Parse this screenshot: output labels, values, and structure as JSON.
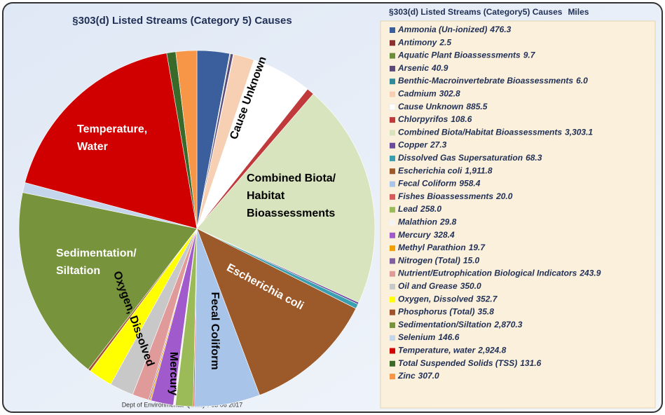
{
  "chart_data": {
    "type": "pie",
    "title": "§303(d) Listed Streams (Category 5) Causes",
    "legend_title": "§303(d) Listed Streams (Category5) Causes",
    "legend_unit": "Miles",
    "footer": "Dept of Environmental Quality  Feb 06 2017",
    "categories": [
      "Ammonia (Un-ionized)",
      "Antimony",
      "Aquatic Plant Bioassessments",
      "Arsenic",
      "Benthic-Macroinvertebrate Bioassessments",
      "Cadmium",
      "Cause Unknown",
      "Chlorpyrifos",
      "Combined Biota/Habitat Bioassessments",
      "Copper",
      "Dissolved Gas Supersaturation",
      "Escherichia coli",
      "Fecal Coliform",
      "Fishes Bioassessments",
      "Lead",
      "Malathion",
      "Mercury",
      "Methyl Parathion",
      "Nitrogen (Total)",
      "Nutrient/Eutrophication Biological Indicators",
      "Oil and Grease",
      "Oxygen, Dissolved",
      "Phosphorus (Total)",
      "Sedimentation/Siltation",
      "Selenium",
      "Temperature, water",
      "Total Suspended Solids (TSS)",
      "Zinc"
    ],
    "values": [
      476.3,
      2.5,
      9.7,
      40.9,
      6.0,
      302.8,
      885.5,
      108.6,
      3303.1,
      27.3,
      68.3,
      1911.8,
      958.4,
      20.0,
      258.0,
      29.8,
      328.4,
      19.7,
      15.0,
      243.9,
      350.0,
      352.7,
      35.8,
      2870.3,
      146.6,
      2924.8,
      131.6,
      307.0
    ],
    "value_labels": [
      "476.3",
      "2.5",
      "9.7",
      "40.9",
      "6.0",
      "302.8",
      "885.5",
      "108.6",
      "3,303.1",
      "27.3",
      "68.3",
      "1,911.8",
      "958.4",
      "20.0",
      "258.0",
      "29.8",
      "328.4",
      "19.7",
      "15.0",
      "243.9",
      "350.0",
      "352.7",
      "35.8",
      "2,870.3",
      "146.6",
      "2,924.8",
      "131.6",
      "307.0"
    ],
    "colors": [
      "#3a5f9c",
      "#8b2f2f",
      "#6b8e3a",
      "#5a4a7a",
      "#2f8a9a",
      "#f7cfb2",
      "#ffffff",
      "#c0393b",
      "#d7e4bd",
      "#6a4c9c",
      "#3aa0b0",
      "#9c5a2a",
      "#a8c4e8",
      "#d65a5a",
      "#9bbb59",
      "#f4f4f4",
      "#a05acb",
      "#f0a000",
      "#7f5fa0",
      "#e09a9a",
      "#c8c8c8",
      "#ffff00",
      "#a0522d",
      "#77933c",
      "#c5d6ec",
      "#d00000",
      "#3a6a2a",
      "#f79646"
    ],
    "slice_labels": [
      null,
      null,
      null,
      null,
      null,
      null,
      [
        "Cause Unknown"
      ],
      null,
      [
        "Combined Biota/",
        "Habitat",
        "Bioassessments"
      ],
      null,
      null,
      [
        "Escherichia coli"
      ],
      [
        "Fecal Coliform"
      ],
      null,
      null,
      null,
      [
        "Mercury"
      ],
      null,
      null,
      null,
      null,
      [
        "Oxygen, Dissolved"
      ],
      null,
      [
        "Sedimentation/",
        "Siltation"
      ],
      null,
      [
        "Temperature,",
        "Water"
      ],
      null,
      null
    ]
  }
}
